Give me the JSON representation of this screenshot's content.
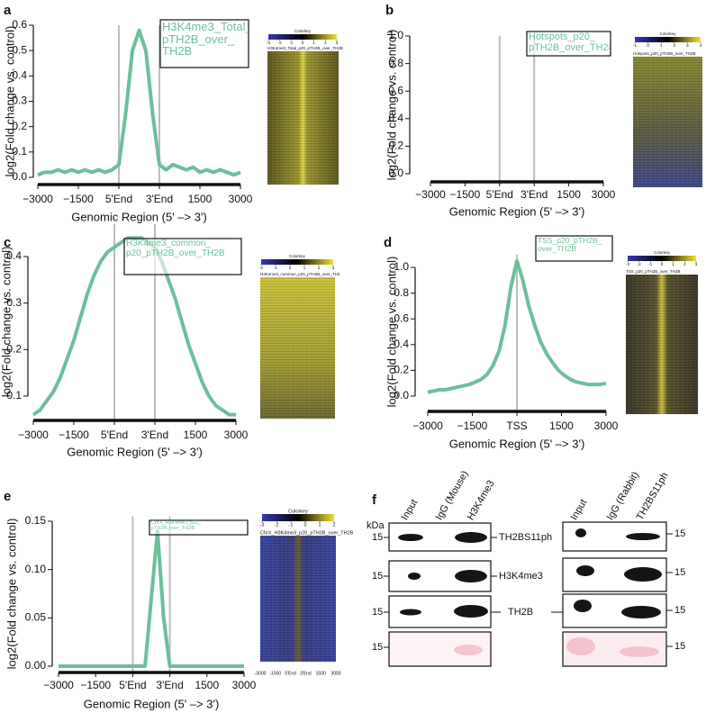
{
  "chart_data": [
    {
      "type": "line",
      "panel": "a",
      "ylabel": "log2(Fold change vs. control)",
      "xlabel": "Genomic Region (5' –> 3')",
      "x": [
        0,
        1,
        2,
        3,
        4,
        5,
        6,
        7,
        8,
        9,
        10,
        11,
        12,
        13,
        14,
        15,
        16,
        17,
        18,
        19,
        20,
        21,
        22,
        23,
        24,
        25,
        26,
        27,
        28,
        29,
        30
      ],
      "xlim": [
        0,
        30
      ],
      "xticks": [
        {
          "value": 0,
          "label": "−3000"
        },
        {
          "value": 6,
          "label": "−1500"
        },
        {
          "value": 12,
          "label": "5'End"
        },
        {
          "value": 18,
          "label": "3'End"
        },
        {
          "value": 24,
          "label": "1500"
        },
        {
          "value": 30,
          "label": "3000"
        }
      ],
      "ylim": [
        0,
        0.6
      ],
      "yticks": [
        {
          "value": 0,
          "label": "0.0"
        },
        0.1,
        0.2,
        0.3,
        0.4,
        0.5,
        0.6
      ],
      "series": [
        {
          "name": "H3K4me3_Total_\npTH2B_over_\nTH2B",
          "color": "#6cbf9a",
          "values": [
            0.01,
            0.02,
            0.02,
            0.03,
            0.02,
            0.03,
            0.02,
            0.03,
            0.02,
            0.03,
            0.02,
            0.03,
            0.05,
            0.25,
            0.5,
            0.58,
            0.5,
            0.25,
            0.05,
            0.03,
            0.05,
            0.04,
            0.03,
            0.04,
            0.02,
            0.03,
            0.02,
            0.03,
            0.02,
            0.01,
            0.02
          ]
        }
      ],
      "heatmap": {
        "key_title": "Colorkey",
        "key_ticks": [
          -3,
          -2,
          -1,
          0,
          1,
          2,
          3
        ],
        "title": "H3K4me3_Total_p20_pTH2B_over_TH2B"
      }
    },
    {
      "type": "line",
      "panel": "b",
      "ylabel": "log2(Fold change vs. control)",
      "xlabel": "Genomic Region (5' –> 3')",
      "x": [],
      "xlim": [
        0,
        30
      ],
      "xticks": [
        {
          "value": 0,
          "label": "−3000"
        },
        {
          "value": 6,
          "label": "−1500"
        },
        {
          "value": 12,
          "label": "5'End"
        },
        {
          "value": 18,
          "label": "3'End"
        },
        {
          "value": 24,
          "label": "1500"
        },
        {
          "value": 30,
          "label": "3000"
        }
      ],
      "ylim": [
        0,
        1
      ],
      "yticks": [
        {
          "value": 0,
          "label": "0.0"
        },
        0.2,
        0.4,
        0.6,
        0.8,
        {
          "value": 1,
          "label": "1.0"
        }
      ],
      "series": [
        {
          "name": "Hotspots_p20_\npTH2B_over_TH2B",
          "color": "#6cbf9a",
          "values": []
        }
      ],
      "heatmap": {
        "key_title": "Colorkey",
        "key_ticks": [
          -1,
          0,
          1,
          2,
          3,
          4
        ],
        "title": "Hotspots_p20_pTH2B_over_TH2B"
      }
    },
    {
      "type": "line",
      "panel": "c",
      "ylabel": "log2(Fold change vs. control)",
      "xlabel": "Genomic Region (5' –> 3')",
      "x": [
        0,
        1,
        2,
        3,
        4,
        5,
        6,
        7,
        8,
        9,
        10,
        11,
        12,
        13,
        14,
        15,
        16,
        17,
        18,
        19,
        20,
        21,
        22,
        23,
        24,
        25,
        26,
        27,
        28,
        29,
        30
      ],
      "xlim": [
        0,
        30
      ],
      "xticks": [
        {
          "value": 0,
          "label": "−3000"
        },
        {
          "value": 6,
          "label": "−1500"
        },
        {
          "value": 12,
          "label": "5'End"
        },
        {
          "value": 18,
          "label": "3'End"
        },
        {
          "value": 24,
          "label": "1500"
        },
        {
          "value": 30,
          "label": "3000"
        }
      ],
      "ylim": [
        0.05,
        0.47
      ],
      "yticks": [
        0.1,
        0.2,
        0.3,
        0.4
      ],
      "series": [
        {
          "name": "H3K4me3_common_\np20_pTH2B_over_TH2B",
          "color": "#6cbf9a",
          "values": [
            0.06,
            0.07,
            0.09,
            0.11,
            0.14,
            0.18,
            0.22,
            0.27,
            0.32,
            0.36,
            0.39,
            0.41,
            0.42,
            0.43,
            0.44,
            0.44,
            0.44,
            0.43,
            0.42,
            0.39,
            0.35,
            0.31,
            0.26,
            0.21,
            0.17,
            0.13,
            0.1,
            0.08,
            0.07,
            0.06,
            0.06
          ]
        }
      ],
      "heatmap": {
        "key_title": "Colorkey",
        "key_ticks": [
          -2,
          -1,
          0,
          1,
          2,
          3
        ],
        "title": "H3K4me3_common_p20_pTH2B_over_TH2"
      }
    },
    {
      "type": "line",
      "panel": "d",
      "ylabel": "log2(Fold change vs. control)",
      "xlabel": "Genomic Region (5' –> 3')",
      "x": [
        0,
        1,
        2,
        3,
        4,
        5,
        6,
        7,
        8,
        9,
        10,
        11,
        12,
        13,
        14,
        15,
        16,
        17,
        18,
        19,
        20,
        21,
        22,
        23,
        24,
        25,
        26,
        27,
        28,
        29,
        30
      ],
      "xlim": [
        0,
        30
      ],
      "xticks": [
        {
          "value": 0,
          "label": "−3000"
        },
        {
          "value": 7.5,
          "label": "−1500"
        },
        {
          "value": 15,
          "label": "TSS"
        },
        {
          "value": 22.5,
          "label": "1500"
        },
        {
          "value": 30,
          "label": "3000"
        }
      ],
      "ylim": [
        -0.1,
        1.1
      ],
      "yticks": [
        {
          "value": 0,
          "label": "0.0"
        },
        0.2,
        0.4,
        0.6,
        0.8,
        {
          "value": 1,
          "label": "1.0"
        }
      ],
      "series": [
        {
          "name": "TSS_p20_pTH2B_\nover_TH2B",
          "color": "#6cbf9a",
          "values": [
            0.03,
            0.04,
            0.05,
            0.05,
            0.06,
            0.07,
            0.08,
            0.09,
            0.11,
            0.13,
            0.17,
            0.24,
            0.35,
            0.55,
            0.85,
            1.05,
            0.9,
            0.7,
            0.55,
            0.42,
            0.33,
            0.26,
            0.2,
            0.16,
            0.13,
            0.11,
            0.1,
            0.09,
            0.09,
            0.09,
            0.1
          ]
        }
      ],
      "heatmap": {
        "key_title": "Colorkey",
        "key_ticks": [
          -3,
          -2,
          -1,
          0,
          1,
          2,
          3
        ],
        "title": "TSS_p20_pTH2B_over_TH2B"
      }
    },
    {
      "type": "line",
      "panel": "e",
      "ylabel": "log2(Fold change vs. control)",
      "xlabel": "Genomic Region (5' –> 3')",
      "x": [
        0,
        1,
        2,
        3,
        4,
        5,
        6,
        7,
        8,
        9,
        10,
        11,
        12,
        13,
        14,
        15,
        16,
        17,
        18,
        19,
        20,
        21,
        22,
        23,
        24,
        25,
        26,
        27,
        28,
        29,
        30
      ],
      "xlim": [
        0,
        30
      ],
      "xticks": [
        {
          "value": 0,
          "label": "−3000"
        },
        {
          "value": 6,
          "label": "−1500"
        },
        {
          "value": 12,
          "label": "5'End"
        },
        {
          "value": 18,
          "label": "3'End"
        },
        {
          "value": 24,
          "label": "1500"
        },
        {
          "value": 30,
          "label": "3000"
        }
      ],
      "ylim": [
        -0.005,
        0.155
      ],
      "yticks": [
        {
          "value": 0,
          "label": "0.00"
        },
        0.05,
        {
          "value": 0.1,
          "label": "0.10"
        },
        0.15
      ],
      "series": [
        {
          "name": "ChrX_H3K4me3_p20_\npTH2B_over_TH2B",
          "color": "#6cbf9a",
          "values": [
            0,
            0,
            0,
            0,
            0,
            0,
            0,
            0,
            0,
            0,
            0,
            0,
            0,
            0,
            0,
            0.07,
            0.14,
            0.05,
            0,
            0,
            0,
            0,
            0,
            0,
            0,
            0,
            0,
            0,
            0,
            0,
            0
          ]
        }
      ],
      "heatmap": {
        "key_title": "Colorkey",
        "key_ticks": [
          -3,
          -2,
          -1,
          0,
          1,
          2
        ],
        "title": "ChrX_H3K4me3_p20_pTH2B_over_TH2B",
        "x_labels": [
          "-3000",
          "-1500",
          "5'End",
          "3'End",
          "1500",
          "3000"
        ]
      }
    }
  ],
  "blot": {
    "panel": "f",
    "kda": "kDa",
    "membranes": [
      {
        "lanes": [
          "Input",
          "IgG (Mouse)",
          "H3K4me3"
        ],
        "markers": [
          "15",
          "15",
          "15",
          "15"
        ],
        "targets": [
          "TH2BS11ph",
          "H3K4me3",
          "TH2B"
        ]
      },
      {
        "lanes": [
          "Input",
          "IgG (Rabbit)",
          "TH2BS11ph"
        ],
        "markers": [
          "15",
          "15",
          "15",
          "15"
        ]
      }
    ]
  }
}
